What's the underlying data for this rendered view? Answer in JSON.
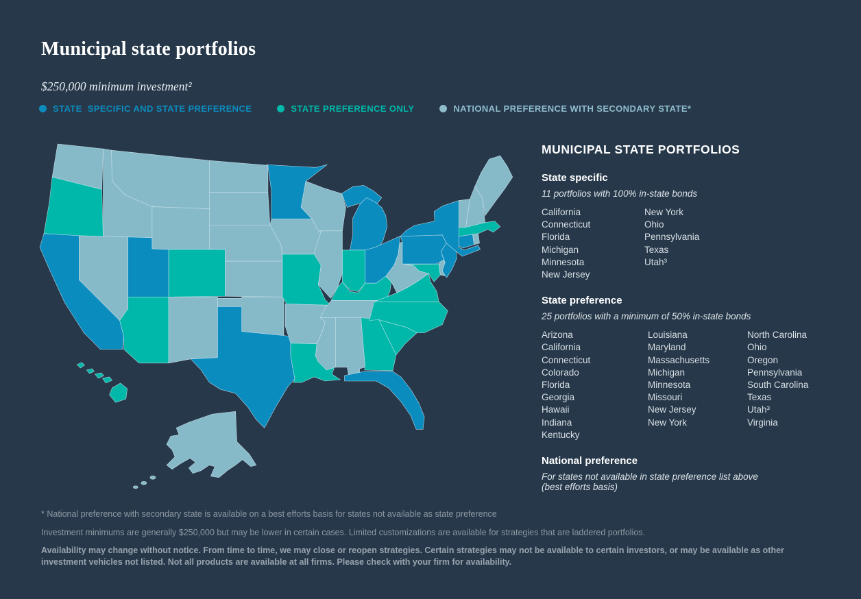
{
  "page": {
    "background": "#26384a"
  },
  "header": {
    "title": "Municipal state portfolios",
    "subtitle": "$250,000 minimum investment²"
  },
  "legend": {
    "items": [
      {
        "label": "STATE  SPECIFIC AND STATE PREFERENCE",
        "color": "#0d8cbe",
        "category": "specific"
      },
      {
        "label": "STATE PREFERENCE ONLY",
        "color": "#00b8a9",
        "category": "preference"
      },
      {
        "label": "NATIONAL PREFERENCE WITH SECONDARY STATE*",
        "color": "#8fbccb",
        "category": "national"
      }
    ]
  },
  "map": {
    "colors": {
      "specific": "#0a8cbf",
      "preference": "#00b8a9",
      "national": "#87bac9"
    },
    "states": {
      "WA": "national",
      "OR": "preference",
      "CA": "specific",
      "NV": "national",
      "ID": "national",
      "MT": "national",
      "WY": "national",
      "UT": "specific",
      "CO": "preference",
      "AZ": "preference",
      "NM": "national",
      "ND": "national",
      "SD": "national",
      "NE": "national",
      "KS": "national",
      "OK": "national",
      "TX": "specific",
      "MN": "specific",
      "IA": "national",
      "MO": "preference",
      "AR": "national",
      "LA": "preference",
      "WI": "national",
      "IL": "national",
      "MI": "specific",
      "IN": "preference",
      "OH": "specific",
      "KY": "preference",
      "TN": "national",
      "MS": "national",
      "AL": "national",
      "GA": "preference",
      "FL": "specific",
      "SC": "preference",
      "NC": "preference",
      "VA": "preference",
      "WV": "national",
      "MD": "preference",
      "DE": "national",
      "PA": "specific",
      "NY": "specific",
      "NJ": "specific",
      "CT": "specific",
      "RI": "national",
      "MA": "preference",
      "VT": "national",
      "NH": "national",
      "ME": "national",
      "AK": "national",
      "HI": "preference"
    }
  },
  "panel": {
    "title": "MUNICIPAL STATE PORTFOLIOS",
    "sections": [
      {
        "heading": "State specific",
        "subtitle": "11 portfolios with 100% in-state bonds",
        "columns": [
          [
            "California",
            "Connecticut",
            "Florida",
            "Michigan",
            "Minnesota",
            "New Jersey"
          ],
          [
            "New York",
            "Ohio",
            "Pennsylvania",
            "Texas",
            "Utah³"
          ]
        ]
      },
      {
        "heading": "State preference",
        "subtitle": "25 portfolios with a minimum of 50% in-state bonds",
        "columns": [
          [
            "Arizona",
            "California",
            "Connecticut",
            "Colorado",
            "Florida",
            "Georgia",
            "Hawaii",
            "Indiana",
            "Kentucky"
          ],
          [
            "Louisiana",
            "Maryland",
            "Massachusetts",
            "Michigan",
            "Minnesota",
            "Missouri",
            "New Jersey",
            "New York"
          ],
          [
            "North Carolina",
            "Ohio",
            "Oregon",
            "Pennsylvania",
            "South Carolina",
            "Texas",
            "Utah³",
            "Virginia"
          ]
        ]
      },
      {
        "heading": "National preference",
        "subtitle": "For states not available in state preference list above\n(best efforts basis)",
        "columns": []
      }
    ]
  },
  "footnotes": [
    {
      "text": "* National preference with secondary state is available on a best efforts basis for states not available as state preference",
      "bold": false
    },
    {
      "text": "Investment minimums are generally $250,000 but may be lower in certain cases. Limited customizations are available for strategies that are laddered portfolios.",
      "bold": false
    },
    {
      "text": "Availability may change without notice. From time to time, we may close or reopen strategies. Certain strategies may not be available to certain investors, or may be available as other investment vehicles not listed. Not all products are available at all firms. Please check with your firm for availability.",
      "bold": true
    }
  ]
}
